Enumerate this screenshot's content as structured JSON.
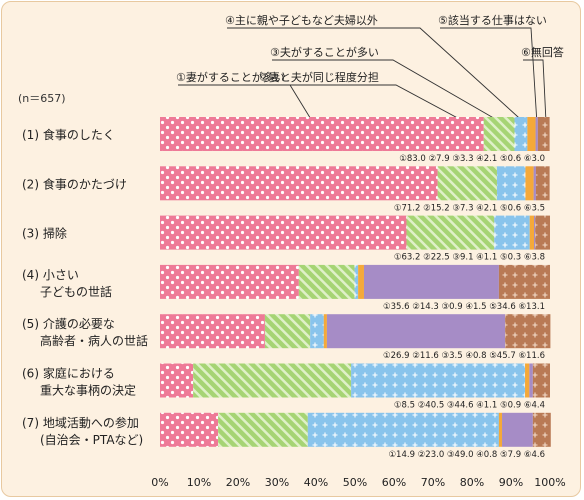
{
  "chart_data": {
    "type": "bar",
    "orientation": "horizontal",
    "stacked": true,
    "note": "(n＝657)",
    "categories": [
      {
        "label_lines": [
          "(1) 食事のしたく"
        ]
      },
      {
        "label_lines": [
          "(2) 食事のかたづけ"
        ]
      },
      {
        "label_lines": [
          "(3) 掃除"
        ]
      },
      {
        "label_lines": [
          "(4) 小さい",
          "子どもの世話"
        ]
      },
      {
        "label_lines": [
          "(5) 介護の必要な",
          "高齢者・病人の世話"
        ]
      },
      {
        "label_lines": [
          "(6) 家庭における",
          "重大な事柄の決定"
        ]
      },
      {
        "label_lines": [
          "(7) 地域活動への参加",
          "(自治会・PTAなど)"
        ]
      }
    ],
    "series": [
      {
        "name": "①妻がすることが多い",
        "marker": "①",
        "color": "#ee7a97",
        "pattern": "dots",
        "values": [
          83.0,
          71.2,
          63.2,
          35.6,
          26.9,
          8.5,
          14.9
        ]
      },
      {
        "name": "②妻と夫が同じ程度分担",
        "marker": "②",
        "color": "#a6d474",
        "pattern": "stripes",
        "values": [
          7.9,
          15.2,
          22.5,
          14.3,
          11.6,
          40.5,
          23.0
        ]
      },
      {
        "name": "③夫がすることが多い",
        "marker": "③",
        "color": "#89c4ec",
        "pattern": "plus",
        "values": [
          3.3,
          7.3,
          9.1,
          0.9,
          3.5,
          44.6,
          49.0
        ]
      },
      {
        "name": "④主に親や子どもなど夫婦以外",
        "marker": "④",
        "color": "#f4a93a",
        "pattern": "none",
        "values": [
          2.1,
          2.1,
          1.1,
          1.5,
          0.8,
          1.1,
          0.8
        ]
      },
      {
        "name": "⑤該当する仕事はない",
        "marker": "⑤",
        "color": "#a68cc6",
        "pattern": "none",
        "values": [
          0.6,
          0.6,
          0.3,
          34.6,
          45.7,
          0.9,
          7.9
        ]
      },
      {
        "name": "⑥無回答",
        "marker": "⑥",
        "color": "#b97a55",
        "pattern": "plus",
        "values": [
          3.0,
          3.5,
          3.8,
          13.1,
          11.6,
          4.4,
          4.6
        ]
      }
    ],
    "xlim": [
      0,
      100
    ],
    "x_ticks": [
      "0%",
      "10%",
      "20%",
      "30%",
      "40%",
      "50%",
      "60%",
      "70%",
      "80%",
      "90%",
      "100%"
    ],
    "legend": "callouts-top",
    "grid": false
  }
}
